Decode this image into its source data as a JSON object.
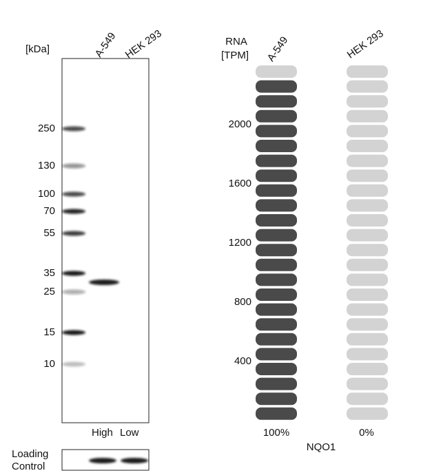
{
  "blot": {
    "unit": "[kDa]",
    "lanes": [
      "A-549",
      "HEK 293"
    ],
    "markers": [
      "250",
      "130",
      "100",
      "70",
      "55",
      "35",
      "25",
      "15",
      "10"
    ],
    "levels": [
      "High",
      "Low"
    ],
    "loading_control": [
      "Loading",
      "Control"
    ]
  },
  "rna": {
    "axis_label": [
      "RNA",
      "[TPM]"
    ],
    "columns": [
      "A-549",
      "HEK 293"
    ],
    "scale": [
      "2000",
      "1600",
      "1200",
      "800",
      "400"
    ],
    "percentages": [
      "100%",
      "0%"
    ],
    "gene": "NQO1"
  }
}
